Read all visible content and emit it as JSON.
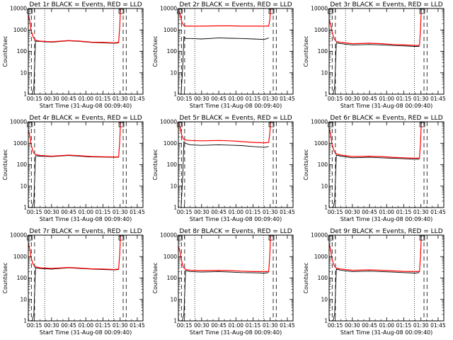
{
  "figure": {
    "background": "#ffffff",
    "axis_color": "#000000",
    "events_color": "#000000",
    "lld_color": "#ff0000"
  },
  "chart_data": [
    {
      "type": "line",
      "title": "Det 1r BLACK = Events, RED = LLD",
      "xlabel": "Start Time (31-Aug-08 00:09:40)",
      "ylabel": "Counts/sec",
      "yscale": "log",
      "ylim": [
        1,
        10000
      ],
      "xlim": [
        "00:09:40",
        "01:50:00"
      ],
      "x_ticks": [
        "00:15",
        "00:30",
        "00:45",
        "01:00",
        "01:15",
        "01:30",
        "01:45"
      ],
      "y_ticks": [
        "1",
        "10",
        "100",
        "1000",
        "10000"
      ],
      "dashed_vlines": [
        "00:12:20",
        "00:15:10",
        "01:32:40",
        "01:35:20"
      ],
      "dotted_vlines": [
        "00:24:00",
        "01:24:20"
      ],
      "series": [
        {
          "name": "Events",
          "color": "#000000",
          "x": [
            "00:11:00",
            "00:13:00",
            "00:14:30",
            "00:16:00",
            "00:20:00",
            "00:30:00",
            "00:45:00",
            "00:55:00",
            "01:05:00",
            "01:15:00",
            "01:25:00",
            "01:28:40"
          ],
          "y": [
            1,
            1,
            2,
            300,
            290,
            270,
            310,
            290,
            260,
            250,
            240,
            250
          ]
        },
        {
          "name": "LLD",
          "color": "#ff0000",
          "x": [
            "00:09:40",
            "00:11:00",
            "00:12:00",
            "00:14:00",
            "00:16:00",
            "00:20:00",
            "00:30:00",
            "00:45:00",
            "00:55:00",
            "01:05:00",
            "01:15:00",
            "01:25:00",
            "01:28:40",
            "01:29:40",
            "01:30:20"
          ],
          "y": [
            5000,
            2500,
            1000,
            450,
            330,
            300,
            280,
            320,
            300,
            270,
            260,
            250,
            260,
            1500,
            10000
          ]
        }
      ]
    },
    {
      "type": "line",
      "title": "Det 2r BLACK = Events, RED = LLD",
      "xlabel": "Start Time (31-Aug-08 00:09:40)",
      "ylabel": "Counts/sec",
      "yscale": "log",
      "ylim": [
        1,
        10000
      ],
      "xlim": [
        "00:09:40",
        "01:50:00"
      ],
      "x_ticks": [
        "00:15",
        "00:30",
        "00:45",
        "01:00",
        "01:15",
        "01:30",
        "01:45"
      ],
      "y_ticks": [
        "1",
        "10",
        "100",
        "1000",
        "10000"
      ],
      "dashed_vlines": [
        "00:12:20",
        "00:15:10",
        "01:32:40",
        "01:35:20"
      ],
      "dotted_vlines": [
        "00:24:00",
        "01:24:20"
      ],
      "series": [
        {
          "name": "Events",
          "color": "#000000",
          "x": [
            "00:12:00",
            "00:13:30",
            "00:14:30",
            "00:16:00",
            "00:20:00",
            "00:30:00",
            "00:45:00",
            "00:55:00",
            "01:05:00",
            "01:15:00",
            "01:25:00",
            "01:28:40"
          ],
          "y": [
            1,
            20,
            500,
            400,
            400,
            380,
            420,
            410,
            400,
            380,
            360,
            420
          ]
        },
        {
          "name": "LLD",
          "color": "#ff0000",
          "x": [
            "00:09:40",
            "00:11:00",
            "00:12:30",
            "00:14:00",
            "00:16:00",
            "00:20:00",
            "00:30:00",
            "00:45:00",
            "00:55:00",
            "01:05:00",
            "01:15:00",
            "01:25:00",
            "01:28:40",
            "01:29:40",
            "01:30:20"
          ],
          "y": [
            8000,
            6000,
            2500,
            1700,
            1500,
            1500,
            1500,
            1550,
            1550,
            1500,
            1500,
            1500,
            1500,
            3000,
            10000
          ]
        }
      ]
    },
    {
      "type": "line",
      "title": "Det 3r BLACK = Events, RED = LLD",
      "xlabel": "Start Time (31-Aug-08 00:09:40)",
      "ylabel": "Counts/sec",
      "yscale": "log",
      "ylim": [
        1,
        10000
      ],
      "xlim": [
        "00:09:40",
        "01:50:00"
      ],
      "x_ticks": [
        "00:15",
        "00:30",
        "00:45",
        "01:00",
        "01:15",
        "01:30",
        "01:45"
      ],
      "y_ticks": [
        "1",
        "10",
        "100",
        "1000",
        "10000"
      ],
      "dashed_vlines": [
        "00:12:20",
        "00:15:10",
        "01:32:40",
        "01:35:20"
      ],
      "dotted_vlines": [
        "00:24:00",
        "01:24:20"
      ],
      "series": [
        {
          "name": "Events",
          "color": "#000000",
          "x": [
            "00:11:00",
            "00:13:00",
            "00:14:30",
            "00:16:00",
            "00:20:00",
            "00:30:00",
            "00:45:00",
            "00:55:00",
            "01:05:00",
            "01:15:00",
            "01:25:00",
            "01:28:40"
          ],
          "y": [
            1,
            1,
            2,
            250,
            230,
            200,
            210,
            200,
            190,
            180,
            170,
            170
          ]
        },
        {
          "name": "LLD",
          "color": "#ff0000",
          "x": [
            "00:09:40",
            "00:11:00",
            "00:12:00",
            "00:14:00",
            "00:16:00",
            "00:20:00",
            "00:30:00",
            "00:45:00",
            "00:55:00",
            "01:05:00",
            "01:15:00",
            "01:25:00",
            "01:28:40",
            "01:29:40",
            "01:30:20"
          ],
          "y": [
            3000,
            1800,
            900,
            380,
            290,
            260,
            230,
            240,
            230,
            210,
            200,
            190,
            190,
            1200,
            10000
          ]
        }
      ]
    },
    {
      "type": "line",
      "title": "Det 4r BLACK = Events, RED = LLD",
      "xlabel": "Start Time (31-Aug-08 00:09:40)",
      "ylabel": "Counts/sec",
      "yscale": "log",
      "ylim": [
        1,
        10000
      ],
      "xlim": [
        "00:09:40",
        "01:50:00"
      ],
      "x_ticks": [
        "00:15",
        "00:30",
        "00:45",
        "01:00",
        "01:15",
        "01:30",
        "01:45"
      ],
      "y_ticks": [
        "1",
        "10",
        "100",
        "1000",
        "10000"
      ],
      "dashed_vlines": [
        "00:12:20",
        "00:15:10",
        "01:32:40",
        "01:35:20"
      ],
      "dotted_vlines": [
        "00:24:00",
        "01:24:20"
      ],
      "series": [
        {
          "name": "Events",
          "color": "#000000",
          "x": [
            "00:11:00",
            "00:13:00",
            "00:14:30",
            "00:16:00",
            "00:20:00",
            "00:30:00",
            "00:45:00",
            "00:55:00",
            "01:05:00",
            "01:15:00",
            "01:25:00",
            "01:28:40"
          ],
          "y": [
            1,
            1,
            2,
            260,
            250,
            240,
            270,
            250,
            230,
            225,
            220,
            220
          ]
        },
        {
          "name": "LLD",
          "color": "#ff0000",
          "x": [
            "00:09:40",
            "00:11:00",
            "00:12:00",
            "00:14:00",
            "00:16:00",
            "00:20:00",
            "00:30:00",
            "00:45:00",
            "00:55:00",
            "01:05:00",
            "01:15:00",
            "01:25:00",
            "01:28:40",
            "01:29:40",
            "01:30:20"
          ],
          "y": [
            4000,
            2200,
            900,
            380,
            300,
            270,
            250,
            280,
            260,
            240,
            235,
            230,
            230,
            1300,
            10000
          ]
        }
      ]
    },
    {
      "type": "line",
      "title": "Det 5r BLACK = Events, RED = LLD",
      "xlabel": "Start Time (31-Aug-08 00:09:40)",
      "ylabel": "Counts/sec",
      "yscale": "log",
      "ylim": [
        1,
        10000
      ],
      "xlim": [
        "00:09:40",
        "01:50:00"
      ],
      "x_ticks": [
        "00:15",
        "00:30",
        "00:45",
        "01:00",
        "01:15",
        "01:30",
        "01:45"
      ],
      "y_ticks": [
        "1",
        "10",
        "100",
        "1000",
        "10000"
      ],
      "dashed_vlines": [
        "00:12:20",
        "00:15:10",
        "01:32:40",
        "01:35:20"
      ],
      "dotted_vlines": [
        "00:24:00",
        "01:24:20"
      ],
      "series": [
        {
          "name": "Events",
          "color": "#000000",
          "x": [
            "00:12:00",
            "00:13:30",
            "00:14:30",
            "00:16:00",
            "00:20:00",
            "00:30:00",
            "00:45:00",
            "00:55:00",
            "01:05:00",
            "01:15:00",
            "01:25:00",
            "01:28:40"
          ],
          "y": [
            1,
            30,
            1200,
            1000,
            850,
            800,
            850,
            820,
            780,
            700,
            650,
            700
          ]
        },
        {
          "name": "LLD",
          "color": "#ff0000",
          "x": [
            "00:09:40",
            "00:11:00",
            "00:12:30",
            "00:14:00",
            "00:16:00",
            "00:20:00",
            "00:30:00",
            "00:45:00",
            "00:55:00",
            "01:05:00",
            "01:15:00",
            "01:25:00",
            "01:28:40",
            "01:29:40",
            "01:30:20"
          ],
          "y": [
            9000,
            6000,
            2500,
            1600,
            1400,
            1350,
            1300,
            1350,
            1300,
            1200,
            1100,
            1050,
            1100,
            3000,
            10000
          ]
        }
      ]
    },
    {
      "type": "line",
      "title": "Det 6r BLACK = Events, RED = LLD",
      "xlabel": "Start Time (31-Aug-08 00:09:40)",
      "ylabel": "Counts/sec",
      "yscale": "log",
      "ylim": [
        1,
        10000
      ],
      "xlim": [
        "00:09:40",
        "01:50:00"
      ],
      "x_ticks": [
        "00:15",
        "00:30",
        "00:45",
        "01:00",
        "01:15",
        "01:30",
        "01:45"
      ],
      "y_ticks": [
        "1",
        "10",
        "100",
        "1000",
        "10000"
      ],
      "dashed_vlines": [
        "00:12:20",
        "00:15:10",
        "01:32:40",
        "01:35:20"
      ],
      "dotted_vlines": [
        "00:24:00",
        "01:24:20"
      ],
      "series": [
        {
          "name": "Events",
          "color": "#000000",
          "x": [
            "00:11:00",
            "00:13:00",
            "00:14:30",
            "00:16:00",
            "00:20:00",
            "00:30:00",
            "00:45:00",
            "00:55:00",
            "01:05:00",
            "01:15:00",
            "01:25:00",
            "01:28:40"
          ],
          "y": [
            1,
            1,
            2,
            280,
            250,
            210,
            220,
            210,
            200,
            190,
            180,
            180
          ]
        },
        {
          "name": "LLD",
          "color": "#ff0000",
          "x": [
            "00:09:40",
            "00:11:00",
            "00:12:00",
            "00:14:00",
            "00:16:00",
            "00:20:00",
            "00:30:00",
            "00:45:00",
            "00:55:00",
            "01:05:00",
            "01:15:00",
            "01:25:00",
            "01:28:40",
            "01:29:40",
            "01:30:20"
          ],
          "y": [
            5000,
            2500,
            1000,
            420,
            320,
            280,
            240,
            250,
            240,
            220,
            210,
            200,
            200,
            1200,
            10000
          ]
        }
      ]
    },
    {
      "type": "line",
      "title": "Det 7r BLACK = Events, RED = LLD",
      "xlabel": "Start Time (31-Aug-08 00:09:40)",
      "ylabel": "Counts/sec",
      "yscale": "log",
      "ylim": [
        1,
        10000
      ],
      "xlim": [
        "00:09:40",
        "01:50:00"
      ],
      "x_ticks": [
        "00:15",
        "00:30",
        "00:45",
        "01:00",
        "01:15",
        "01:30",
        "01:45"
      ],
      "y_ticks": [
        "1",
        "10",
        "100",
        "1000",
        "10000"
      ],
      "dashed_vlines": [
        "00:12:20",
        "00:15:10",
        "01:32:40",
        "01:35:20"
      ],
      "dotted_vlines": [
        "00:24:00",
        "01:24:20"
      ],
      "series": [
        {
          "name": "Events",
          "color": "#000000",
          "x": [
            "00:11:00",
            "00:13:00",
            "00:14:30",
            "00:16:00",
            "00:20:00",
            "00:30:00",
            "00:45:00",
            "00:55:00",
            "01:05:00",
            "01:15:00",
            "01:25:00",
            "01:28:40"
          ],
          "y": [
            1,
            1,
            2,
            300,
            280,
            260,
            300,
            280,
            260,
            250,
            240,
            250
          ]
        },
        {
          "name": "LLD",
          "color": "#ff0000",
          "x": [
            "00:09:40",
            "00:11:00",
            "00:12:00",
            "00:14:00",
            "00:16:00",
            "00:20:00",
            "00:30:00",
            "00:45:00",
            "00:55:00",
            "01:05:00",
            "01:15:00",
            "01:25:00",
            "01:28:40",
            "01:29:40",
            "01:30:20"
          ],
          "y": [
            4000,
            2200,
            900,
            420,
            330,
            300,
            280,
            310,
            290,
            270,
            260,
            250,
            260,
            1400,
            10000
          ]
        }
      ]
    },
    {
      "type": "line",
      "title": "Det 8r BLACK = Events, RED = LLD",
      "xlabel": "Start Time (31-Aug-08 00:09:40)",
      "ylabel": "Counts/sec",
      "yscale": "log",
      "ylim": [
        1,
        10000
      ],
      "xlim": [
        "00:09:40",
        "01:50:00"
      ],
      "x_ticks": [
        "00:15",
        "00:30",
        "00:45",
        "01:00",
        "01:15",
        "01:30",
        "01:45"
      ],
      "y_ticks": [
        "1",
        "10",
        "100",
        "1000",
        "10000"
      ],
      "dashed_vlines": [
        "00:12:20",
        "00:15:10",
        "01:32:40",
        "01:35:20"
      ],
      "dotted_vlines": [
        "00:24:00",
        "01:24:20"
      ],
      "series": [
        {
          "name": "Events",
          "color": "#000000",
          "x": [
            "00:11:00",
            "00:13:00",
            "00:14:30",
            "00:16:00",
            "00:20:00",
            "00:30:00",
            "00:45:00",
            "00:55:00",
            "01:05:00",
            "01:15:00",
            "01:25:00",
            "01:28:40"
          ],
          "y": [
            1,
            1,
            2,
            220,
            200,
            190,
            200,
            190,
            180,
            175,
            170,
            180
          ]
        },
        {
          "name": "LLD",
          "color": "#ff0000",
          "x": [
            "00:09:40",
            "00:11:00",
            "00:12:00",
            "00:14:00",
            "00:16:00",
            "00:20:00",
            "00:30:00",
            "00:45:00",
            "00:55:00",
            "01:05:00",
            "01:15:00",
            "01:25:00",
            "01:28:40",
            "01:29:40",
            "01:30:20"
          ],
          "y": [
            3000,
            1800,
            800,
            320,
            250,
            230,
            220,
            230,
            220,
            210,
            200,
            200,
            200,
            1200,
            10000
          ]
        }
      ]
    },
    {
      "type": "line",
      "title": "Det 9r BLACK = Events, RED = LLD",
      "xlabel": "Start Time (31-Aug-08 00:09:40)",
      "ylabel": "Counts/sec",
      "yscale": "log",
      "ylim": [
        1,
        10000
      ],
      "xlim": [
        "00:09:40",
        "01:50:00"
      ],
      "x_ticks": [
        "00:15",
        "00:30",
        "00:45",
        "01:00",
        "01:15",
        "01:30",
        "01:45"
      ],
      "y_ticks": [
        "1",
        "10",
        "100",
        "1000",
        "10000"
      ],
      "dashed_vlines": [
        "00:12:20",
        "00:15:10",
        "01:32:40",
        "01:35:20"
      ],
      "dotted_vlines": [
        "00:24:00",
        "01:24:20"
      ],
      "series": [
        {
          "name": "Events",
          "color": "#000000",
          "x": [
            "00:11:00",
            "00:13:00",
            "00:14:30",
            "00:16:00",
            "00:20:00",
            "00:30:00",
            "00:45:00",
            "00:55:00",
            "01:05:00",
            "01:15:00",
            "01:25:00",
            "01:28:40"
          ],
          "y": [
            1,
            1,
            2,
            260,
            230,
            200,
            210,
            200,
            190,
            180,
            170,
            180
          ]
        },
        {
          "name": "LLD",
          "color": "#ff0000",
          "x": [
            "00:09:40",
            "00:11:00",
            "00:12:00",
            "00:14:00",
            "00:16:00",
            "00:20:00",
            "00:30:00",
            "00:45:00",
            "00:55:00",
            "01:05:00",
            "01:15:00",
            "01:25:00",
            "01:28:40",
            "01:29:40",
            "01:30:20"
          ],
          "y": [
            4000,
            2000,
            850,
            380,
            290,
            260,
            230,
            240,
            230,
            215,
            205,
            200,
            200,
            1200,
            10000
          ]
        }
      ]
    }
  ]
}
